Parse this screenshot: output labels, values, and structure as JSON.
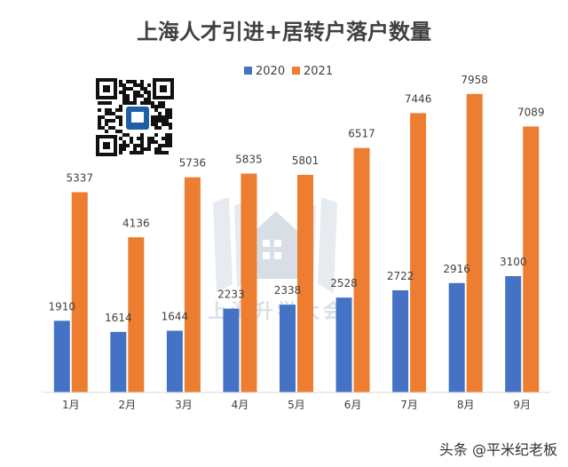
{
  "chart_data": {
    "type": "bar",
    "title": "上海人才引进+居转户落户数量",
    "categories": [
      "1月",
      "2月",
      "3月",
      "4月",
      "5月",
      "6月",
      "7月",
      "8月",
      "9月"
    ],
    "series": [
      {
        "name": "2020",
        "color": "#4472C4",
        "values": [
          1910,
          1614,
          1644,
          2233,
          2338,
          2528,
          2722,
          2916,
          3100
        ]
      },
      {
        "name": "2021",
        "color": "#ED7D31",
        "values": [
          5337,
          4136,
          5736,
          5835,
          5801,
          6517,
          7446,
          7958,
          7089
        ]
      }
    ],
    "ylim": [
      0,
      8000
    ],
    "grid": false,
    "legend": "top-center"
  },
  "watermark": {
    "text": "上海升学大会"
  },
  "credit": {
    "text": "头条 @平米纪老板"
  },
  "qr": {
    "icon": "qr-code-icon"
  }
}
